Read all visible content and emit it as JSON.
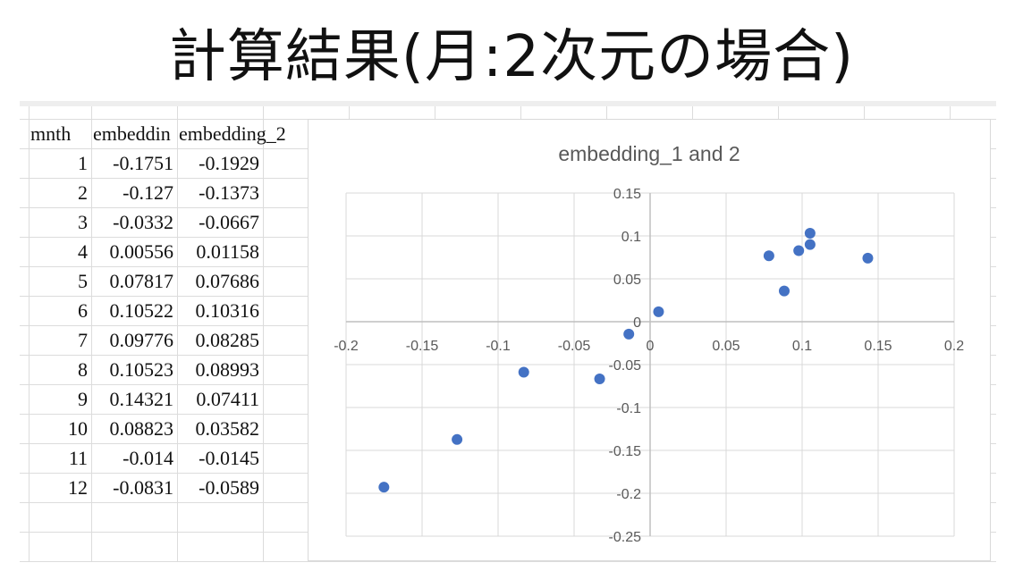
{
  "title": "計算結果(月:2次元の場合)",
  "table": {
    "headers": [
      "mnth",
      "embeddin",
      "embedding_2"
    ],
    "rows": [
      [
        "1",
        "-0.1751",
        "-0.1929"
      ],
      [
        "2",
        "-0.127",
        "-0.1373"
      ],
      [
        "3",
        "-0.0332",
        "-0.0667"
      ],
      [
        "4",
        "0.00556",
        "0.01158"
      ],
      [
        "5",
        "0.07817",
        "0.07686"
      ],
      [
        "6",
        "0.10522",
        "0.10316"
      ],
      [
        "7",
        "0.09776",
        "0.08285"
      ],
      [
        "8",
        "0.10523",
        "0.08993"
      ],
      [
        "9",
        "0.14321",
        "0.07411"
      ],
      [
        "10",
        "0.08823",
        "0.03582"
      ],
      [
        "11",
        "-0.014",
        "-0.0145"
      ],
      [
        "12",
        "-0.0831",
        "-0.0589"
      ]
    ]
  },
  "chart_data": {
    "type": "scatter",
    "title": "embedding_1 and 2",
    "xlabel": "",
    "ylabel": "",
    "xlim": [
      -0.2,
      0.2
    ],
    "ylim": [
      -0.25,
      0.15
    ],
    "xticks": [
      -0.2,
      -0.15,
      -0.1,
      -0.05,
      0,
      0.05,
      0.1,
      0.15,
      0.2
    ],
    "xtick_labels": [
      "-0.2",
      "-0.15",
      "-0.1",
      "-0.05",
      "0",
      "0.05",
      "0.1",
      "0.15",
      "0.2"
    ],
    "yticks": [
      0.15,
      0.1,
      0.05,
      0,
      -0.05,
      -0.1,
      -0.15,
      -0.2,
      -0.25
    ],
    "ytick_labels": [
      "0.15",
      "0.1",
      "0.05",
      "0",
      "-0.05",
      "-0.1",
      "-0.15",
      "-0.2",
      "-0.25"
    ],
    "grid": true,
    "marker_color": "#4472c4",
    "points": [
      {
        "x": -0.1751,
        "y": -0.1929
      },
      {
        "x": -0.127,
        "y": -0.1373
      },
      {
        "x": -0.0332,
        "y": -0.0667
      },
      {
        "x": 0.00556,
        "y": 0.01158
      },
      {
        "x": 0.07817,
        "y": 0.07686
      },
      {
        "x": 0.10522,
        "y": 0.10316
      },
      {
        "x": 0.09776,
        "y": 0.08285
      },
      {
        "x": 0.10523,
        "y": 0.08993
      },
      {
        "x": 0.14321,
        "y": 0.07411
      },
      {
        "x": 0.08823,
        "y": 0.03582
      },
      {
        "x": -0.014,
        "y": -0.0145
      },
      {
        "x": -0.0831,
        "y": -0.0589
      }
    ]
  }
}
